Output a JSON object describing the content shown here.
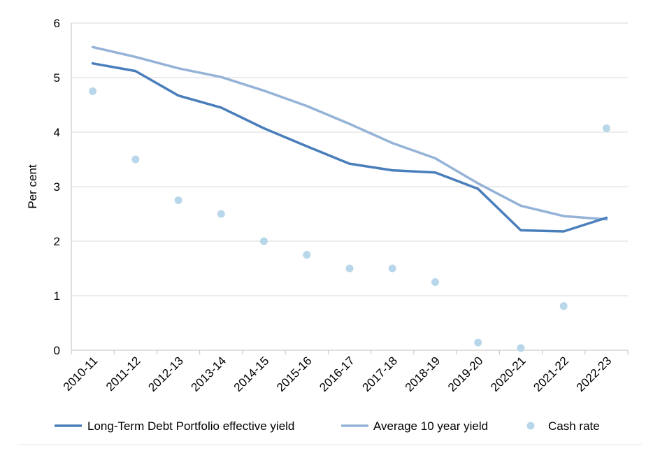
{
  "chart_data": {
    "type": "line",
    "title": "",
    "xlabel": "",
    "ylabel": "Per cent",
    "ylim": [
      0,
      6
    ],
    "yticks": [
      0,
      1,
      2,
      3,
      4,
      5,
      6
    ],
    "grid": true,
    "legend_position": "bottom",
    "categories": [
      "2010-11",
      "2011-12",
      "2012-13",
      "2013-14",
      "2014-15",
      "2015-16",
      "2016-17",
      "2017-18",
      "2018-19",
      "2019-20",
      "2020-21",
      "2021-22",
      "2022-23"
    ],
    "series": [
      {
        "name": "Long-Term Debt Portfolio effective yield",
        "style": "line",
        "color": "#4a7ebb",
        "values": [
          5.26,
          5.12,
          4.67,
          4.45,
          4.07,
          3.74,
          3.42,
          3.3,
          3.26,
          2.96,
          2.2,
          2.18,
          2.43
        ]
      },
      {
        "name": "Average 10 year yield",
        "style": "line",
        "color": "#95b3d7",
        "values": [
          5.56,
          5.38,
          5.17,
          5.01,
          4.76,
          4.48,
          4.15,
          3.8,
          3.52,
          3.06,
          2.65,
          2.46,
          2.4
        ]
      },
      {
        "name": "Cash rate",
        "style": "marker",
        "color": "#b9d7ea",
        "values": [
          4.75,
          3.5,
          2.75,
          2.5,
          2.0,
          1.75,
          1.5,
          1.5,
          1.25,
          0.14,
          0.04,
          0.81,
          4.07
        ]
      }
    ]
  }
}
